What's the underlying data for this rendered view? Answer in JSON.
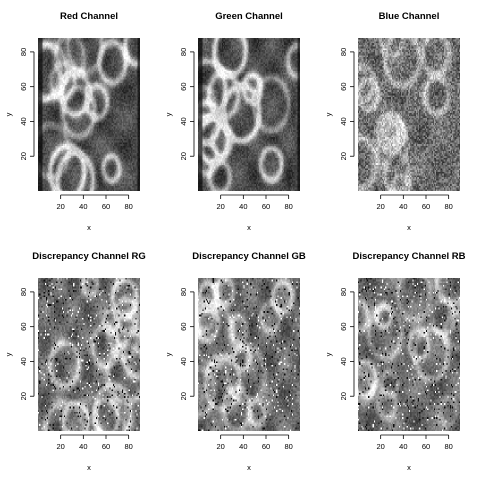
{
  "chart_data": [
    {
      "type": "heatmap",
      "title": "Red Channel",
      "xlabel": "x",
      "ylabel": "y",
      "xlim": [
        0,
        90
      ],
      "ylim": [
        0,
        88
      ],
      "xticks": [
        20,
        40,
        60,
        80
      ],
      "yticks": [
        20,
        40,
        60,
        80
      ],
      "colormap": "grayscale",
      "pattern": "channel",
      "seed": 11
    },
    {
      "type": "heatmap",
      "title": "Green Channel",
      "xlabel": "x",
      "ylabel": "y",
      "xlim": [
        0,
        90
      ],
      "ylim": [
        0,
        88
      ],
      "xticks": [
        20,
        40,
        60,
        80
      ],
      "yticks": [
        20,
        40,
        60,
        80
      ],
      "colormap": "grayscale",
      "pattern": "channel",
      "seed": 23
    },
    {
      "type": "heatmap",
      "title": "Blue Channel",
      "xlabel": "x",
      "ylabel": "y",
      "xlim": [
        0,
        90
      ],
      "ylim": [
        0,
        88
      ],
      "xticks": [
        20,
        40,
        60,
        80
      ],
      "yticks": [
        20,
        40,
        60,
        80
      ],
      "colormap": "grayscale",
      "pattern": "noisy",
      "seed": 37
    },
    {
      "type": "heatmap",
      "title": "Discrepancy Channel RG",
      "xlabel": "x",
      "ylabel": "y",
      "xlim": [
        0,
        90
      ],
      "ylim": [
        0,
        88
      ],
      "xticks": [
        20,
        40,
        60,
        80
      ],
      "yticks": [
        20,
        40,
        60,
        80
      ],
      "colormap": "grayscale",
      "pattern": "discrepancy",
      "seed": 41
    },
    {
      "type": "heatmap",
      "title": "Discrepancy Channel GB",
      "xlabel": "x",
      "ylabel": "y",
      "xlim": [
        0,
        90
      ],
      "ylim": [
        0,
        88
      ],
      "xticks": [
        20,
        40,
        60,
        80
      ],
      "yticks": [
        20,
        40,
        60,
        80
      ],
      "colormap": "grayscale",
      "pattern": "discrepancy",
      "seed": 53
    },
    {
      "type": "heatmap",
      "title": "Discrepancy Channel RB",
      "xlabel": "x",
      "ylabel": "y",
      "xlim": [
        0,
        90
      ],
      "ylim": [
        0,
        88
      ],
      "xticks": [
        20,
        40,
        60,
        80
      ],
      "yticks": [
        20,
        40,
        60,
        80
      ],
      "colormap": "grayscale",
      "pattern": "discrepancy",
      "seed": 67
    }
  ]
}
